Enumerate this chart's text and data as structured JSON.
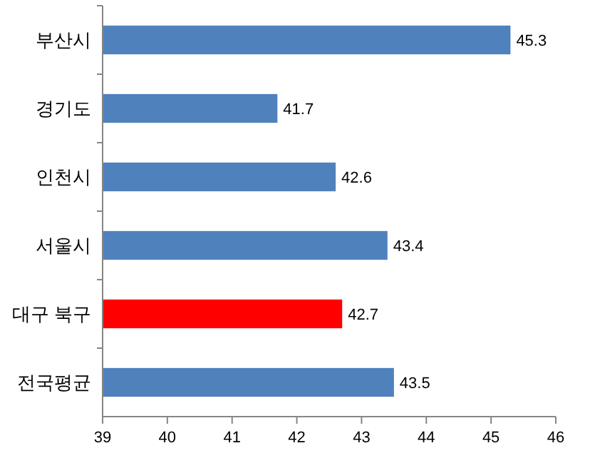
{
  "chart_data": {
    "type": "bar",
    "orientation": "horizontal",
    "categories": [
      "부산시",
      "경기도",
      "인천시",
      "서울시",
      "대구 북구",
      "전국평균"
    ],
    "values": [
      45.3,
      41.7,
      42.6,
      43.4,
      42.7,
      43.5
    ],
    "colors": [
      "#4f81bd",
      "#4f81bd",
      "#4f81bd",
      "#4f81bd",
      "#ff0000",
      "#4f81bd"
    ],
    "xlim": [
      39,
      46
    ],
    "xticks": [
      39,
      40,
      41,
      42,
      43,
      44,
      45,
      46
    ],
    "grid": false,
    "data_labels": true
  }
}
